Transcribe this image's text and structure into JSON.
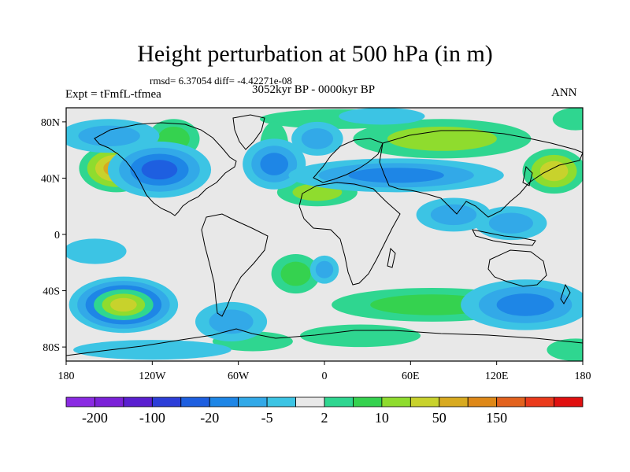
{
  "header": {
    "title": "Height perturbation at 500 hPa (in m)",
    "stats": "rmsd= 6.37054 diff= -4.42271e-08",
    "experiment": "Expt = tFmfL-tfmea",
    "period": "3052kyr BP - 0000kyr BP",
    "season": "ANN"
  },
  "axes": {
    "lat_ticks": [
      {
        "label": "80N",
        "lat": 80
      },
      {
        "label": "40N",
        "lat": 40
      },
      {
        "label": "0",
        "lat": 0
      },
      {
        "label": "40S",
        "lat": -40
      },
      {
        "label": "80S",
        "lat": -80
      }
    ],
    "lon_ticks": [
      {
        "label": "180",
        "lon": -180
      },
      {
        "label": "120W",
        "lon": -120
      },
      {
        "label": "60W",
        "lon": -60
      },
      {
        "label": "0",
        "lon": 0
      },
      {
        "label": "60E",
        "lon": 60
      },
      {
        "label": "120E",
        "lon": 120
      },
      {
        "label": "180",
        "lon": 180
      }
    ],
    "lon_range": [
      -180,
      180
    ],
    "lat_range": [
      -90,
      90
    ]
  },
  "colorbar": {
    "colors": [
      "#8a2be2",
      "#7b22d8",
      "#5a1fd0",
      "#2c3ed8",
      "#1e5fe0",
      "#1e86e6",
      "#32a9e8",
      "#3cc4e4",
      "#e8e8e8",
      "#2fd690",
      "#35d24f",
      "#8fdc2e",
      "#c8d22c",
      "#d8aa20",
      "#de8818",
      "#e2621e",
      "#ea3a1c",
      "#e01010"
    ],
    "labels": [
      {
        "text": "-200",
        "boundary": 1
      },
      {
        "text": "-100",
        "boundary": 3
      },
      {
        "text": "-20",
        "boundary": 5
      },
      {
        "text": "-5",
        "boundary": 7
      },
      {
        "text": "2",
        "boundary": 9
      },
      {
        "text": "10",
        "boundary": 11
      },
      {
        "text": "50",
        "boundary": 13
      },
      {
        "text": "150",
        "boundary": 15
      }
    ]
  },
  "field": {
    "background": "#e8e8e8",
    "anomalies": [
      {
        "lon": -145,
        "lat": 47,
        "rx": 26,
        "ry": 17,
        "levels": [
          "#2fd690",
          "#8fdc2e",
          "#c8d22c",
          "#d8aa20"
        ]
      },
      {
        "lon": 160,
        "lat": 45,
        "rx": 22,
        "ry": 16,
        "levels": [
          "#2fd690",
          "#8fdc2e",
          "#c8d22c"
        ]
      },
      {
        "lon": 82,
        "lat": 68,
        "rx": 62,
        "ry": 14,
        "levels": [
          "#2fd690",
          "#8fdc2e"
        ]
      },
      {
        "lon": 10,
        "lat": 82,
        "rx": 55,
        "ry": 7,
        "levels": [
          "#2fd690"
        ]
      },
      {
        "lon": -35,
        "lat": 62,
        "rx": 10,
        "ry": 18,
        "levels": [
          "#2fd690"
        ]
      },
      {
        "lon": -105,
        "lat": 68,
        "rx": 18,
        "ry": 14,
        "levels": [
          "#2fd690",
          "#35d24f"
        ]
      },
      {
        "lon": -5,
        "lat": 30,
        "rx": 28,
        "ry": 10,
        "levels": [
          "#2fd690",
          "#8fdc2e"
        ]
      },
      {
        "lon": -20,
        "lat": -28,
        "rx": 17,
        "ry": 14,
        "levels": [
          "#2fd690",
          "#35d24f"
        ]
      },
      {
        "lon": 75,
        "lat": -50,
        "rx": 70,
        "ry": 12,
        "levels": [
          "#2fd690",
          "#35d24f"
        ]
      },
      {
        "lon": 25,
        "lat": -72,
        "rx": 42,
        "ry": 8,
        "levels": [
          "#2fd690"
        ]
      },
      {
        "lon": -50,
        "lat": -76,
        "rx": 28,
        "ry": 7,
        "levels": [
          "#2fd690"
        ]
      },
      {
        "lon": 175,
        "lat": -82,
        "rx": 20,
        "ry": 8,
        "levels": [
          "#2fd690"
        ]
      },
      {
        "lon": 175,
        "lat": 82,
        "rx": 16,
        "ry": 8,
        "levels": [
          "#2fd690"
        ]
      },
      {
        "lon": -115,
        "lat": 46,
        "rx": 36,
        "ry": 20,
        "levels": [
          "#3cc4e4",
          "#32a9e8",
          "#1e86e6",
          "#1e5fe0"
        ]
      },
      {
        "lon": -35,
        "lat": 50,
        "rx": 22,
        "ry": 18,
        "levels": [
          "#3cc4e4",
          "#32a9e8",
          "#1e86e6"
        ]
      },
      {
        "lon": 50,
        "lat": 42,
        "rx": 75,
        "ry": 12,
        "levels": [
          "#3cc4e4",
          "#32a9e8",
          "#1e86e6"
        ]
      },
      {
        "lon": -5,
        "lat": 68,
        "rx": 18,
        "ry": 12,
        "levels": [
          "#3cc4e4",
          "#32a9e8"
        ]
      },
      {
        "lon": 40,
        "lat": 84,
        "rx": 30,
        "ry": 6,
        "levels": [
          "#3cc4e4"
        ]
      },
      {
        "lon": 90,
        "lat": 14,
        "rx": 26,
        "ry": 12,
        "levels": [
          "#3cc4e4",
          "#32a9e8"
        ]
      },
      {
        "lon": 130,
        "lat": 8,
        "rx": 25,
        "ry": 12,
        "levels": [
          "#3cc4e4",
          "#32a9e8"
        ]
      },
      {
        "lon": -140,
        "lat": -50,
        "rx": 38,
        "ry": 20,
        "levels": [
          "#3cc4e4",
          "#32a9e8",
          "#1e86e6",
          "#2fd690",
          "#8fdc2e",
          "#c8d22c"
        ]
      },
      {
        "lon": 140,
        "lat": -50,
        "rx": 45,
        "ry": 18,
        "levels": [
          "#3cc4e4",
          "#32a9e8",
          "#1e86e6"
        ]
      },
      {
        "lon": -65,
        "lat": -62,
        "rx": 25,
        "ry": 14,
        "levels": [
          "#3cc4e4",
          "#32a9e8"
        ]
      },
      {
        "lon": 0,
        "lat": -25,
        "rx": 10,
        "ry": 10,
        "levels": [
          "#3cc4e4",
          "#32a9e8"
        ]
      },
      {
        "lon": -120,
        "lat": -82,
        "rx": 55,
        "ry": 7,
        "levels": [
          "#3cc4e4"
        ]
      },
      {
        "lon": -160,
        "lat": -12,
        "rx": 22,
        "ry": 9,
        "levels": [
          "#3cc4e4"
        ]
      },
      {
        "lon": -150,
        "lat": 70,
        "rx": 35,
        "ry": 12,
        "levels": [
          "#3cc4e4",
          "#32a9e8"
        ]
      }
    ]
  }
}
